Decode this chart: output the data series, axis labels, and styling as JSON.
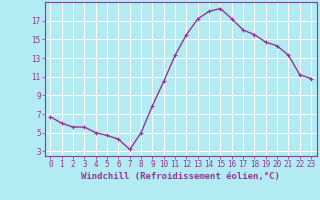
{
  "x": [
    0,
    1,
    2,
    3,
    4,
    5,
    6,
    7,
    8,
    9,
    10,
    11,
    12,
    13,
    14,
    15,
    16,
    17,
    18,
    19,
    20,
    21,
    22,
    23
  ],
  "y": [
    6.7,
    6.0,
    5.6,
    5.6,
    5.0,
    4.7,
    4.3,
    3.2,
    5.0,
    7.9,
    10.5,
    13.3,
    15.5,
    17.2,
    18.0,
    18.3,
    17.2,
    16.0,
    15.5,
    14.7,
    14.3,
    13.3,
    11.2,
    10.8
  ],
  "line_color": "#993399",
  "marker": "+",
  "marker_size": 3,
  "linewidth": 1.0,
  "xlabel": "Windchill (Refroidissement éolien,°C)",
  "xlabel_fontsize": 6.5,
  "bg_color": "#b2ebf2",
  "grid_color": "#ffffff",
  "xlim": [
    -0.5,
    23.5
  ],
  "ylim": [
    2.5,
    19.0
  ],
  "yticks": [
    3,
    5,
    7,
    9,
    11,
    13,
    15,
    17
  ],
  "xticks": [
    0,
    1,
    2,
    3,
    4,
    5,
    6,
    7,
    8,
    9,
    10,
    11,
    12,
    13,
    14,
    15,
    16,
    17,
    18,
    19,
    20,
    21,
    22,
    23
  ],
  "tick_fontsize": 5.5,
  "tick_color": "#993399",
  "spine_color": "#993399"
}
